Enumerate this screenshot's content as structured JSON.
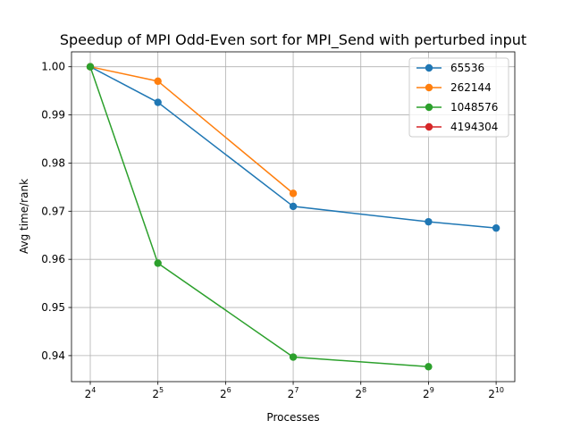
{
  "chart_data": {
    "type": "line",
    "title": "Speedup of MPI Odd-Even sort for MPI_Send with perturbed input",
    "xlabel": "Processes",
    "ylabel": "Avg time/rank",
    "x_scale": "log2",
    "x_ticks": [
      {
        "value": 16,
        "base": "2",
        "exp": "4"
      },
      {
        "value": 32,
        "base": "2",
        "exp": "5"
      },
      {
        "value": 64,
        "base": "2",
        "exp": "6"
      },
      {
        "value": 128,
        "base": "2",
        "exp": "7"
      },
      {
        "value": 256,
        "base": "2",
        "exp": "8"
      },
      {
        "value": 512,
        "base": "2",
        "exp": "9"
      },
      {
        "value": 1024,
        "base": "2",
        "exp": "10"
      }
    ],
    "y_ticks": [
      "0.94",
      "0.95",
      "0.96",
      "0.97",
      "0.98",
      "0.99",
      "1.00"
    ],
    "xlim": [
      13.2,
      1240
    ],
    "ylim": [
      0.9346,
      1.0031
    ],
    "grid": true,
    "legend_position": "top-right",
    "series": [
      {
        "name": "65536",
        "color": "#1f77b4",
        "x": [
          16,
          32,
          128,
          512,
          1024
        ],
        "y": [
          1.0,
          0.9926,
          0.971,
          0.9678,
          0.9665
        ]
      },
      {
        "name": "262144",
        "color": "#ff7f0e",
        "x": [
          16,
          32,
          128
        ],
        "y": [
          1.0,
          0.997,
          0.9737
        ]
      },
      {
        "name": "1048576",
        "color": "#2ca02c",
        "x": [
          16,
          32,
          128,
          512
        ],
        "y": [
          1.0,
          0.9592,
          0.9397,
          0.9377
        ]
      },
      {
        "name": "4194304",
        "color": "#d62728",
        "x": [],
        "y": []
      }
    ]
  }
}
